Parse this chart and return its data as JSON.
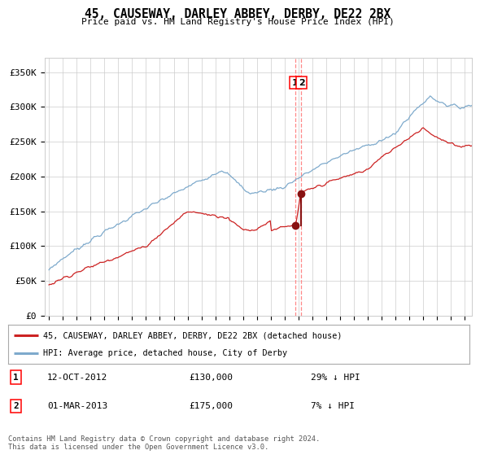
{
  "title": "45, CAUSEWAY, DARLEY ABBEY, DERBY, DE22 2BX",
  "subtitle": "Price paid vs. HM Land Registry's House Price Index (HPI)",
  "x_start_year": 1995,
  "x_end_year": 2025,
  "ylim": [
    0,
    370000
  ],
  "yticks": [
    0,
    50000,
    100000,
    150000,
    200000,
    250000,
    300000,
    350000
  ],
  "ytick_labels": [
    "£0",
    "£50K",
    "£100K",
    "£150K",
    "£200K",
    "£250K",
    "£300K",
    "£350K"
  ],
  "hpi_color": "#7eaacc",
  "price_color": "#cc2222",
  "marker_color": "#881111",
  "dashed_color": "#ff8888",
  "transaction1": {
    "date_num": 2012.79,
    "price": 130000,
    "label": "1",
    "date_str": "12-OCT-2012",
    "amount": "£130,000",
    "pct": "29% ↓ HPI"
  },
  "transaction2": {
    "date_num": 2013.17,
    "price": 175000,
    "label": "2",
    "date_str": "01-MAR-2013",
    "amount": "£175,000",
    "pct": "7% ↓ HPI"
  },
  "legend_label1": "45, CAUSEWAY, DARLEY ABBEY, DERBY, DE22 2BX (detached house)",
  "legend_label2": "HPI: Average price, detached house, City of Derby",
  "footer": "Contains HM Land Registry data © Crown copyright and database right 2024.\nThis data is licensed under the Open Government Licence v3.0.",
  "grid_color": "#cccccc",
  "background_color": "#ffffff"
}
